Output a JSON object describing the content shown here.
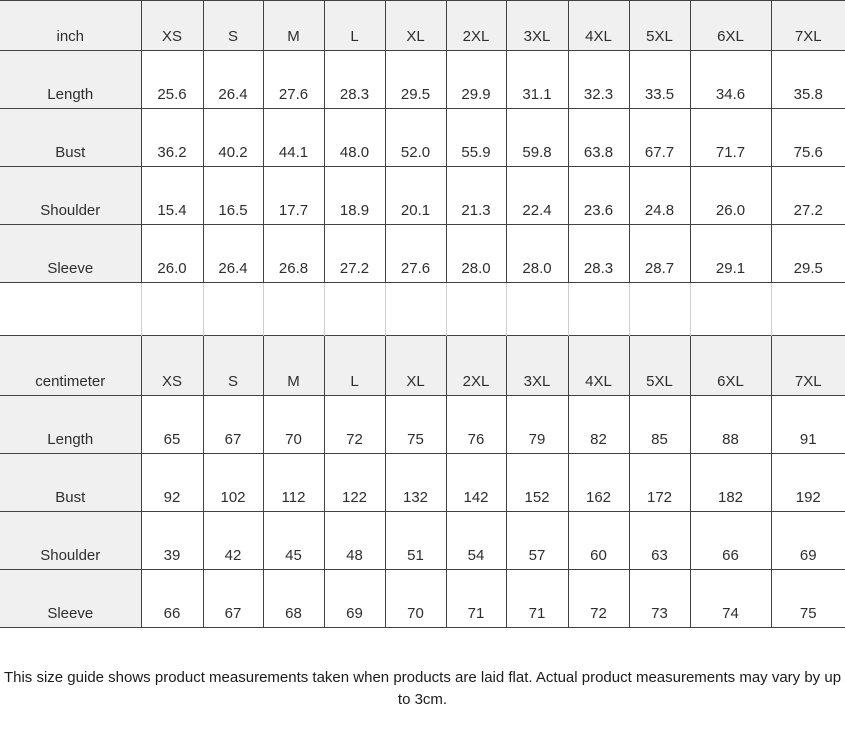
{
  "colors": {
    "header_fill": "#f0f0f0",
    "border_dark": "#424242",
    "border_light": "#cfcfcf",
    "text": "#2e2e2e"
  },
  "size_guide": {
    "tables": [
      {
        "unit_label": "inch",
        "sizes": [
          "XS",
          "S",
          "M",
          "L",
          "XL",
          "2XL",
          "3XL",
          "4XL",
          "5XL",
          "6XL",
          "7XL"
        ],
        "rows": [
          {
            "label": "Length",
            "values": [
              "25.6",
              "26.4",
              "27.6",
              "28.3",
              "29.5",
              "29.9",
              "31.1",
              "32.3",
              "33.5",
              "34.6",
              "35.8"
            ]
          },
          {
            "label": "Bust",
            "values": [
              "36.2",
              "40.2",
              "44.1",
              "48.0",
              "52.0",
              "55.9",
              "59.8",
              "63.8",
              "67.7",
              "71.7",
              "75.6"
            ]
          },
          {
            "label": "Shoulder",
            "values": [
              "15.4",
              "16.5",
              "17.7",
              "18.9",
              "20.1",
              "21.3",
              "22.4",
              "23.6",
              "24.8",
              "26.0",
              "27.2"
            ]
          },
          {
            "label": "Sleeve",
            "values": [
              "26.0",
              "26.4",
              "26.8",
              "27.2",
              "27.6",
              "28.0",
              "28.0",
              "28.3",
              "28.7",
              "29.1",
              "29.5"
            ]
          }
        ]
      },
      {
        "unit_label": "centimeter",
        "sizes": [
          "XS",
          "S",
          "M",
          "L",
          "XL",
          "2XL",
          "3XL",
          "4XL",
          "5XL",
          "6XL",
          "7XL"
        ],
        "rows": [
          {
            "label": "Length",
            "values": [
              "65",
              "67",
              "70",
              "72",
              "75",
              "76",
              "79",
              "82",
              "85",
              "88",
              "91"
            ]
          },
          {
            "label": "Bust",
            "values": [
              "92",
              "102",
              "112",
              "122",
              "132",
              "142",
              "152",
              "162",
              "172",
              "182",
              "192"
            ]
          },
          {
            "label": "Shoulder",
            "values": [
              "39",
              "42",
              "45",
              "48",
              "51",
              "54",
              "57",
              "60",
              "63",
              "66",
              "69"
            ]
          },
          {
            "label": "Sleeve",
            "values": [
              "66",
              "67",
              "68",
              "69",
              "70",
              "71",
              "71",
              "72",
              "73",
              "74",
              "75"
            ]
          }
        ]
      }
    ],
    "footer_note": "This size guide shows product measurements taken when products are laid flat. Actual product measurements may vary by up to 3cm."
  }
}
